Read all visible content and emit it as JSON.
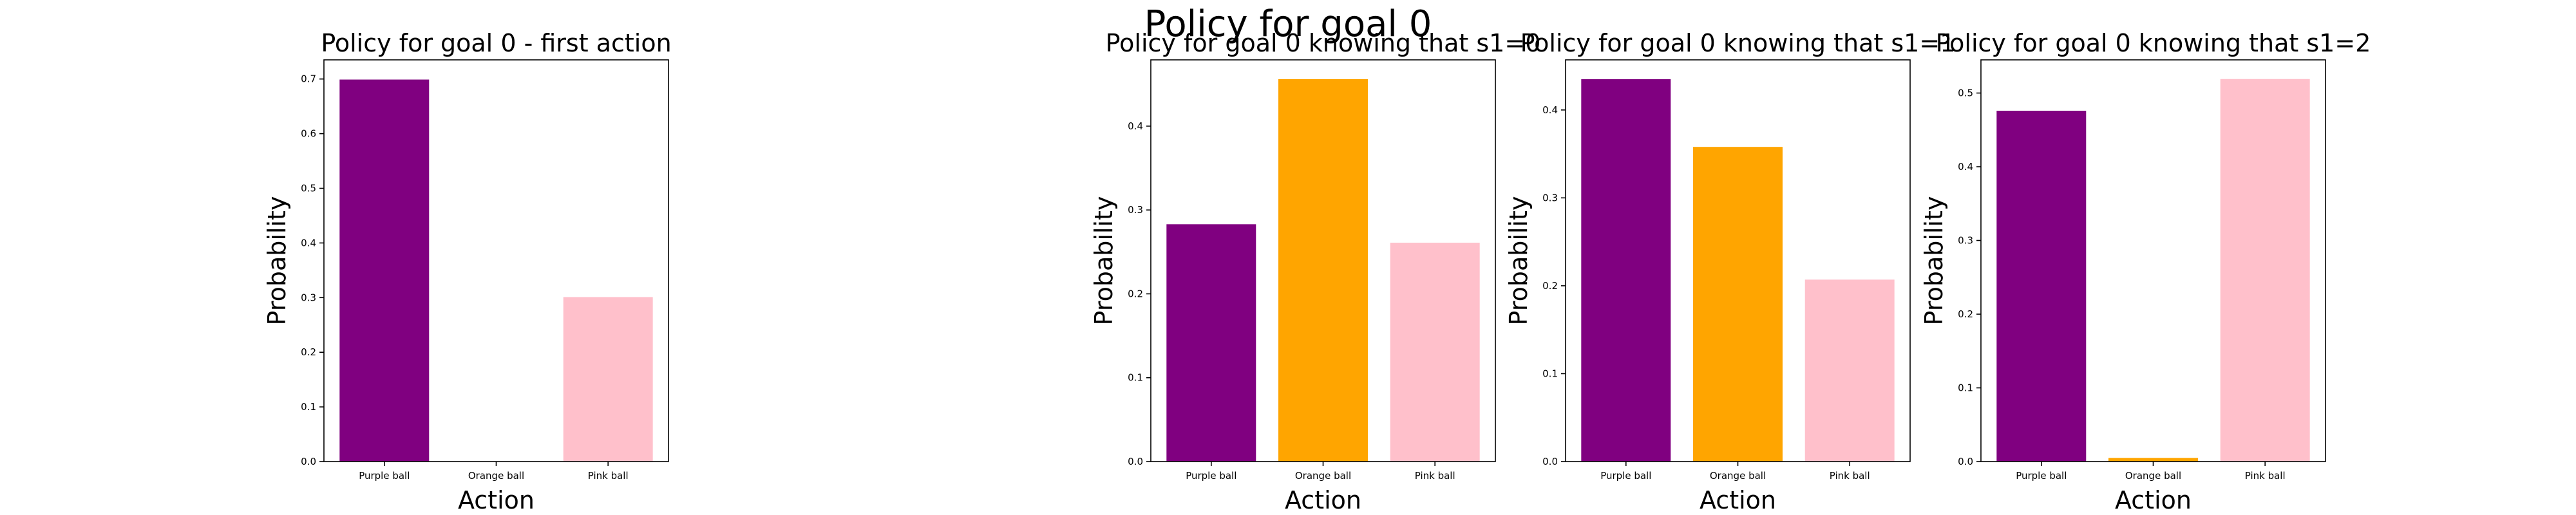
{
  "figure": {
    "suptitle": "Policy for goal 0"
  },
  "chart_data": [
    {
      "type": "bar",
      "title": "Policy for goal 0 - first action",
      "xlabel": "Action",
      "ylabel": "Probability",
      "categories": [
        "Purple ball",
        "Orange ball",
        "Pink ball"
      ],
      "values": [
        0.699,
        0.0,
        0.301
      ],
      "colors": [
        "#800080",
        "#ffa500",
        "#ffc0cb"
      ],
      "ylim": [
        0,
        0.735
      ],
      "yticks": [
        0.0,
        0.1,
        0.2,
        0.3,
        0.4,
        0.5,
        0.6,
        0.7
      ],
      "grid": false
    },
    {
      "type": "bar",
      "title": "Policy for goal 0 knowing that s1=0",
      "xlabel": "Action",
      "ylabel": "Probability",
      "categories": [
        "Purple ball",
        "Orange ball",
        "Pink ball"
      ],
      "values": [
        0.283,
        0.456,
        0.261
      ],
      "colors": [
        "#800080",
        "#ffa500",
        "#ffc0cb"
      ],
      "ylim": [
        0,
        0.479
      ],
      "yticks": [
        0.0,
        0.1,
        0.2,
        0.3,
        0.4
      ],
      "grid": false
    },
    {
      "type": "bar",
      "title": "Policy for goal 0 knowing that s1=1",
      "xlabel": "Action",
      "ylabel": "Probability",
      "categories": [
        "Purple ball",
        "Orange ball",
        "Pink ball"
      ],
      "values": [
        0.435,
        0.358,
        0.207
      ],
      "colors": [
        "#800080",
        "#ffa500",
        "#ffc0cb"
      ],
      "ylim": [
        0,
        0.457
      ],
      "yticks": [
        0.0,
        0.1,
        0.2,
        0.3,
        0.4
      ],
      "grid": false
    },
    {
      "type": "bar",
      "title": "Policy for goal 0 knowing that s1=2",
      "xlabel": "Action",
      "ylabel": "Probability",
      "categories": [
        "Purple ball",
        "Orange ball",
        "Pink ball"
      ],
      "values": [
        0.476,
        0.005,
        0.519
      ],
      "colors": [
        "#800080",
        "#ffa500",
        "#ffc0cb"
      ],
      "ylim": [
        0,
        0.545
      ],
      "yticks": [
        0.0,
        0.1,
        0.2,
        0.3,
        0.4,
        0.5
      ],
      "grid": false
    }
  ]
}
